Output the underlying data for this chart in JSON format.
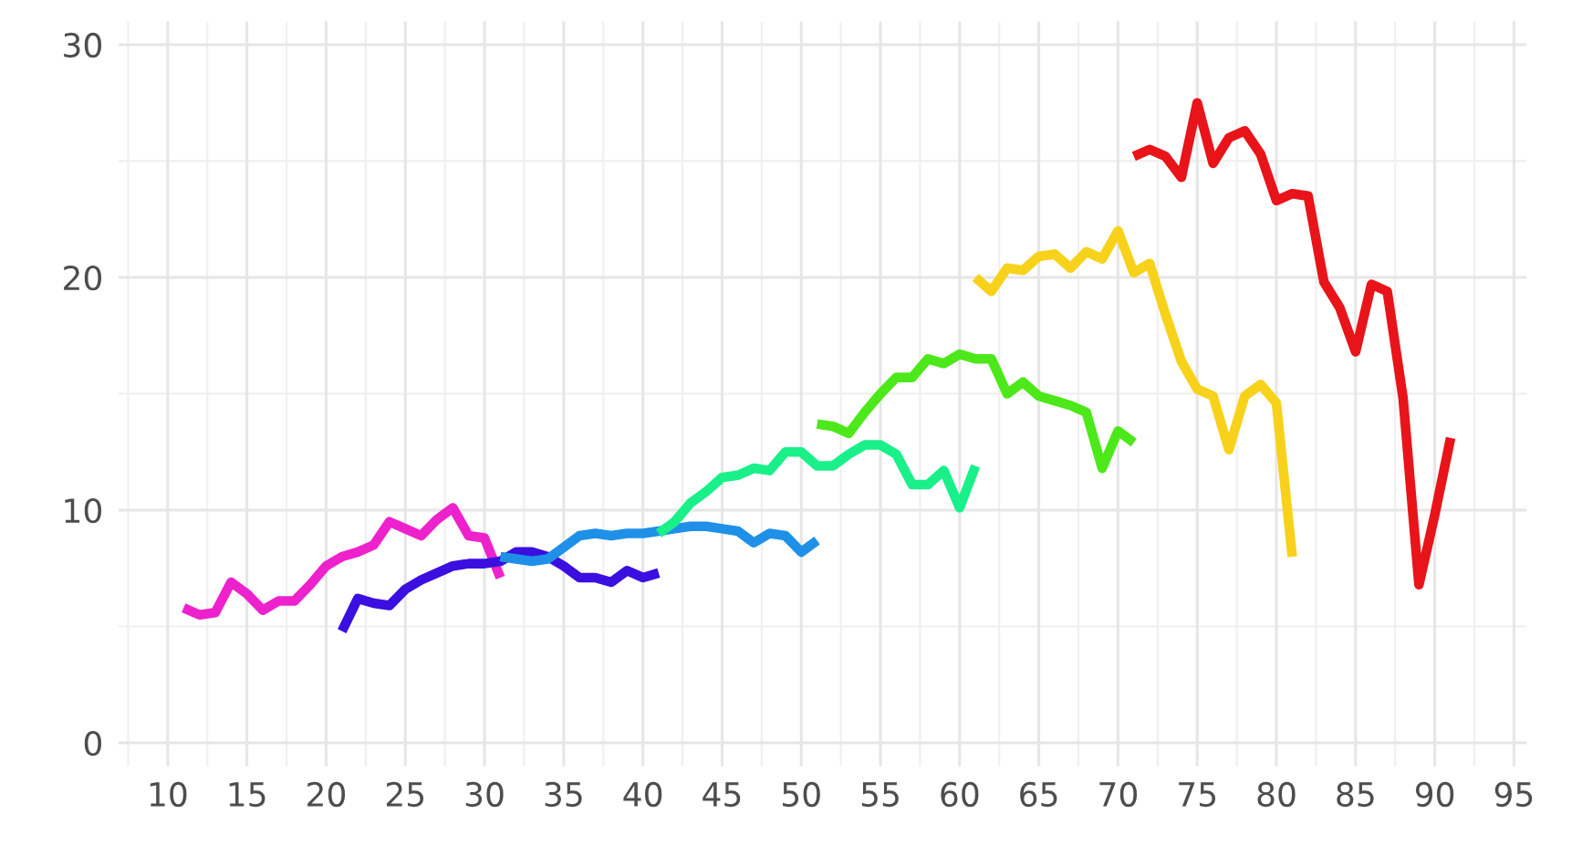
{
  "chart_data": {
    "type": "line",
    "xlim": [
      6.9,
      95.8
    ],
    "ylim": [
      -1,
      31
    ],
    "xticks": [
      10,
      15,
      20,
      25,
      30,
      35,
      40,
      45,
      50,
      55,
      60,
      65,
      70,
      75,
      80,
      85,
      90,
      95
    ],
    "yticks": [
      0,
      10,
      20,
      30
    ],
    "grid": true,
    "legend": false,
    "marker": "none",
    "line_style": "solid",
    "series": [
      {
        "color": "#ee22cc",
        "x": [
          11,
          12,
          13,
          14,
          15,
          16,
          17,
          18,
          19,
          20,
          21,
          22,
          23,
          24,
          25,
          26,
          27,
          28,
          29,
          30,
          31
        ],
        "values": [
          5.8,
          5.5,
          5.6,
          6.9,
          6.4,
          5.7,
          6.1,
          6.1,
          6.8,
          7.6,
          8.0,
          8.2,
          8.5,
          9.5,
          9.2,
          8.9,
          9.6,
          10.1,
          8.9,
          8.8,
          7.1
        ]
      },
      {
        "color": "#3a0fe0",
        "x": [
          21,
          22,
          23,
          24,
          25,
          26,
          27,
          28,
          29,
          30,
          31,
          32,
          33,
          34,
          35,
          36,
          37,
          38,
          39,
          40,
          41
        ],
        "values": [
          4.8,
          6.2,
          6.0,
          5.9,
          6.6,
          7.0,
          7.3,
          7.6,
          7.7,
          7.7,
          7.8,
          8.2,
          8.2,
          8.0,
          7.6,
          7.1,
          7.1,
          6.9,
          7.4,
          7.1,
          7.3
        ]
      },
      {
        "color": "#1e90e8",
        "x": [
          31,
          32,
          33,
          34,
          35,
          36,
          37,
          38,
          39,
          40,
          41,
          42,
          43,
          44,
          45,
          46,
          47,
          48,
          49,
          50,
          51
        ],
        "values": [
          8.0,
          7.9,
          7.8,
          7.9,
          8.4,
          8.9,
          9.0,
          8.9,
          9.0,
          9.0,
          9.1,
          9.2,
          9.3,
          9.3,
          9.2,
          9.1,
          8.6,
          9.0,
          8.9,
          8.2,
          8.7
        ]
      },
      {
        "color": "#19f08a",
        "x": [
          41,
          42,
          43,
          44,
          45,
          46,
          47,
          48,
          49,
          50,
          51,
          52,
          53,
          54,
          55,
          56,
          57,
          58,
          59,
          60,
          61
        ],
        "values": [
          9.0,
          9.5,
          10.3,
          10.8,
          11.4,
          11.5,
          11.8,
          11.7,
          12.5,
          12.5,
          11.9,
          11.9,
          12.4,
          12.8,
          12.8,
          12.4,
          11.1,
          11.1,
          11.7,
          10.1,
          11.9
        ]
      },
      {
        "color": "#4de81a",
        "x": [
          51,
          52,
          53,
          54,
          55,
          56,
          57,
          58,
          59,
          60,
          61,
          62,
          63,
          64,
          65,
          66,
          67,
          68,
          69,
          70,
          71
        ],
        "values": [
          13.7,
          13.6,
          13.3,
          14.2,
          15.0,
          15.7,
          15.7,
          16.5,
          16.3,
          16.7,
          16.5,
          16.5,
          15.0,
          15.5,
          14.9,
          14.7,
          14.5,
          14.2,
          11.8,
          13.4,
          12.9
        ]
      },
      {
        "color": "#f8d21a",
        "x": [
          61,
          62,
          63,
          64,
          65,
          66,
          67,
          68,
          69,
          70,
          71,
          72,
          73,
          74,
          75,
          76,
          77,
          78,
          79,
          80,
          81
        ],
        "values": [
          20.0,
          19.4,
          20.4,
          20.3,
          20.9,
          21.0,
          20.4,
          21.1,
          20.8,
          22.0,
          20.2,
          20.6,
          18.4,
          16.4,
          15.2,
          14.9,
          12.6,
          14.9,
          15.4,
          14.6,
          8.0
        ]
      },
      {
        "color": "#e8141a",
        "x": [
          71,
          72,
          73,
          74,
          75,
          76,
          77,
          78,
          79,
          80,
          81,
          82,
          83,
          84,
          85,
          86,
          87,
          88,
          89,
          90,
          91
        ],
        "values": [
          25.2,
          25.5,
          25.2,
          24.3,
          27.5,
          24.9,
          26.0,
          26.3,
          25.3,
          23.3,
          23.6,
          23.5,
          19.8,
          18.7,
          16.8,
          19.7,
          19.4,
          14.8,
          6.8,
          9.8,
          13.1
        ]
      }
    ]
  }
}
